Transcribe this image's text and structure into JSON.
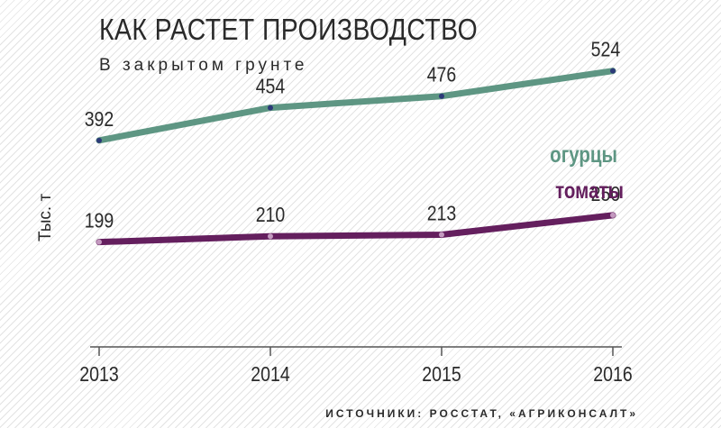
{
  "header": {
    "title": "КАК РАСТЕТ ПРОИЗВОДСТВО",
    "subtitle": "В закрытом грунте"
  },
  "footer": {
    "source": "ИСТОЧНИКИ: РОССТАТ, «АГРИКОНСАЛТ»"
  },
  "chart_data": {
    "type": "line",
    "title": "КАК РАСТЕТ ПРОИЗВОДСТВО",
    "subtitle": "В закрытом грунте",
    "ylabel": "Тыс. т",
    "xlabel": "",
    "x": [
      "2013",
      "2014",
      "2015",
      "2016"
    ],
    "series": [
      {
        "name": "огурцы",
        "values": [
          392,
          454,
          476,
          524
        ],
        "color": "#5e9683",
        "dot_color": "#2c3a78"
      },
      {
        "name": "томаты",
        "values": [
          199,
          210,
          213,
          250
        ],
        "color": "#641f5e",
        "dot_color": "#c49ac0"
      }
    ],
    "ylim": [
      0,
      650
    ],
    "grid": false,
    "legend": "inline-right"
  }
}
